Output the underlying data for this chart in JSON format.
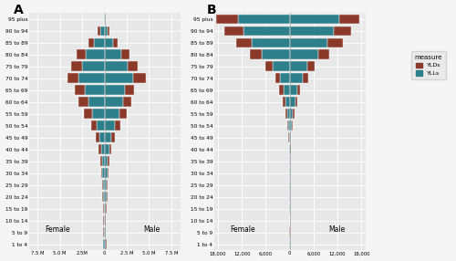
{
  "age_groups": [
    "1 to 4",
    "5 to 9",
    "10 to 14",
    "15 to 19",
    "20 to 24",
    "25 to 29",
    "30 to 34",
    "35 to 39",
    "40 to 44",
    "45 to 49",
    "50 to 54",
    "55 to 59",
    "60 to 64",
    "65 to 69",
    "70 to 74",
    "75 to 79",
    "80 to 84",
    "85 to 89",
    "90 to 94",
    "95 plus"
  ],
  "female_ylls": [
    0.12,
    0.08,
    0.06,
    0.1,
    0.15,
    0.18,
    0.22,
    0.28,
    0.38,
    0.55,
    0.9,
    1.4,
    1.8,
    2.2,
    2.9,
    2.5,
    2.1,
    1.2,
    0.5,
    0.07
  ],
  "female_ylds": [
    0.05,
    0.04,
    0.05,
    0.08,
    0.1,
    0.12,
    0.15,
    0.18,
    0.25,
    0.38,
    0.62,
    0.9,
    1.1,
    1.15,
    1.3,
    1.2,
    1.0,
    0.58,
    0.24,
    0.03
  ],
  "male_ylls": [
    0.15,
    0.1,
    0.08,
    0.14,
    0.22,
    0.26,
    0.32,
    0.4,
    0.55,
    0.78,
    1.2,
    1.65,
    2.05,
    2.3,
    3.2,
    2.6,
    1.9,
    1.0,
    0.4,
    0.05
  ],
  "male_ylds": [
    0.05,
    0.04,
    0.04,
    0.07,
    0.09,
    0.11,
    0.14,
    0.17,
    0.23,
    0.35,
    0.58,
    0.82,
    1.0,
    1.05,
    1.42,
    1.15,
    0.88,
    0.46,
    0.19,
    0.02
  ],
  "female_rate_ylls": [
    55,
    35,
    25,
    45,
    55,
    60,
    70,
    85,
    130,
    200,
    380,
    650,
    1050,
    1600,
    2500,
    4200,
    7000,
    9500,
    11500,
    13000
  ],
  "female_rate_ylds": [
    28,
    18,
    18,
    32,
    38,
    42,
    50,
    58,
    88,
    135,
    255,
    430,
    650,
    1000,
    1100,
    1800,
    3000,
    4000,
    4800,
    5500
  ],
  "male_rate_ylls": [
    70,
    42,
    32,
    60,
    80,
    85,
    95,
    118,
    175,
    275,
    500,
    850,
    1350,
    1800,
    3200,
    4500,
    7200,
    9500,
    11000,
    12500
  ],
  "male_rate_ylds": [
    28,
    18,
    16,
    30,
    35,
    38,
    46,
    55,
    85,
    130,
    245,
    400,
    600,
    900,
    1400,
    1700,
    2800,
    3800,
    4300,
    5000
  ],
  "color_ylds": "#8B3A2A",
  "color_ylls": "#2E7F8C",
  "bg_color": "#e8e8e8",
  "xlim_a": 8500000,
  "xlim_b": 19000,
  "label_female": "Female",
  "label_male": "Male",
  "panel_a_label": "A",
  "panel_b_label": "B",
  "ticks_a": [
    -7500000,
    -5000000,
    -2500000,
    0,
    2500000,
    5000000,
    7500000
  ],
  "labels_a": [
    "7.5 M",
    "5.0 M",
    "2.5M",
    "0",
    "2.5 M",
    "5.0 M",
    "7.5 M"
  ],
  "ticks_b": [
    -18000,
    -12000,
    -6000,
    0,
    6000,
    12000,
    18000
  ],
  "labels_b": [
    "18,000",
    "12,000",
    "6,000",
    "0",
    "6,000",
    "12,000",
    "18,000"
  ]
}
